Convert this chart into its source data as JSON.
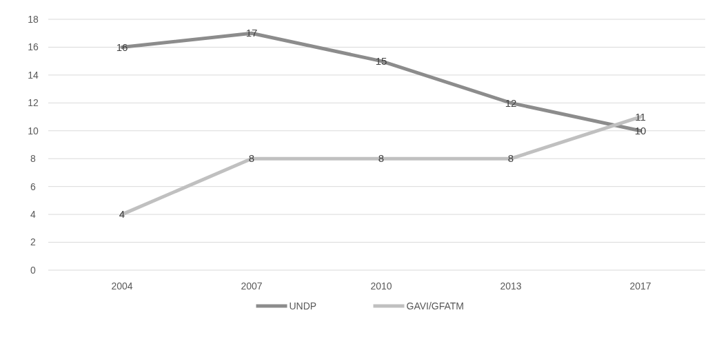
{
  "chart_data": {
    "type": "line",
    "categories": [
      "2004",
      "2007",
      "2010",
      "2013",
      "2017"
    ],
    "series": [
      {
        "name": "UNDP",
        "color": "#8c8c8c",
        "values": [
          16,
          17,
          15,
          12,
          10
        ]
      },
      {
        "name": "GAVI/GFATM",
        "color": "#c0c0c0",
        "values": [
          4,
          8,
          8,
          8,
          11
        ]
      }
    ],
    "ylim": [
      0,
      18
    ],
    "yticks": [
      0,
      2,
      4,
      6,
      8,
      10,
      12,
      14,
      16,
      18
    ],
    "grid": "y",
    "legend": "bottom",
    "data_labels": true,
    "marker": "none",
    "line_style": "solid"
  }
}
